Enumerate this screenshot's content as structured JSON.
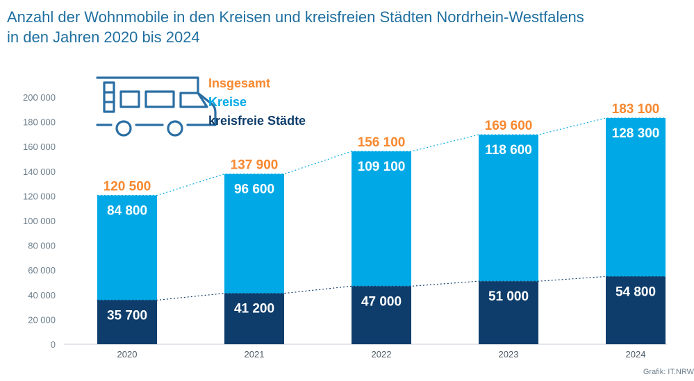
{
  "title_line1": "Anzahl der Wohnmobile in den Kreisen und kreisfreien Städten Nordrhein-Westfalens",
  "title_line2": "in den Jahren 2020 bis 2024",
  "credit": "Grafik: IT.NRW",
  "colors": {
    "title": "#1f6fa0",
    "insgesamt": "#f7882f",
    "kreise": "#00a9e6",
    "kreisfreie": "#0e3d6b",
    "axis": "#6d7f8c",
    "icon": "#2a6ea3"
  },
  "icon": "camper-van-icon",
  "chart_data": {
    "type": "bar",
    "stacked": true,
    "categories": [
      "2020",
      "2021",
      "2022",
      "2023",
      "2024"
    ],
    "series": [
      {
        "name": "kreisfreie Städte",
        "values": [
          35700,
          41200,
          47000,
          51000,
          54800
        ],
        "labels": [
          "35 700",
          "41 200",
          "47 000",
          "51 000",
          "54 800"
        ]
      },
      {
        "name": "Kreise",
        "values": [
          84800,
          96600,
          109100,
          118600,
          128300
        ],
        "labels": [
          "84 800",
          "96 600",
          "109 100",
          "118 600",
          "128 300"
        ]
      }
    ],
    "totals": {
      "name": "Insgesamt",
      "values": [
        120500,
        137900,
        156100,
        169600,
        183100
      ],
      "labels": [
        "120 500",
        "137 900",
        "156 100",
        "169 600",
        "183 100"
      ]
    },
    "ylim": [
      0,
      200000
    ],
    "yticks": [
      0,
      20000,
      40000,
      60000,
      80000,
      100000,
      120000,
      140000,
      160000,
      180000,
      200000
    ],
    "ytick_labels": [
      "0",
      "20 000",
      "40 000",
      "60 000",
      "80 000",
      "100 000",
      "120 000",
      "140 000",
      "160 000",
      "180 000",
      "200 000"
    ],
    "legend": [
      "Insgesamt",
      "Kreise",
      "kreisfreie Städte"
    ],
    "legend_position": "top-left",
    "trend_lines": "dotted",
    "grid": false
  }
}
